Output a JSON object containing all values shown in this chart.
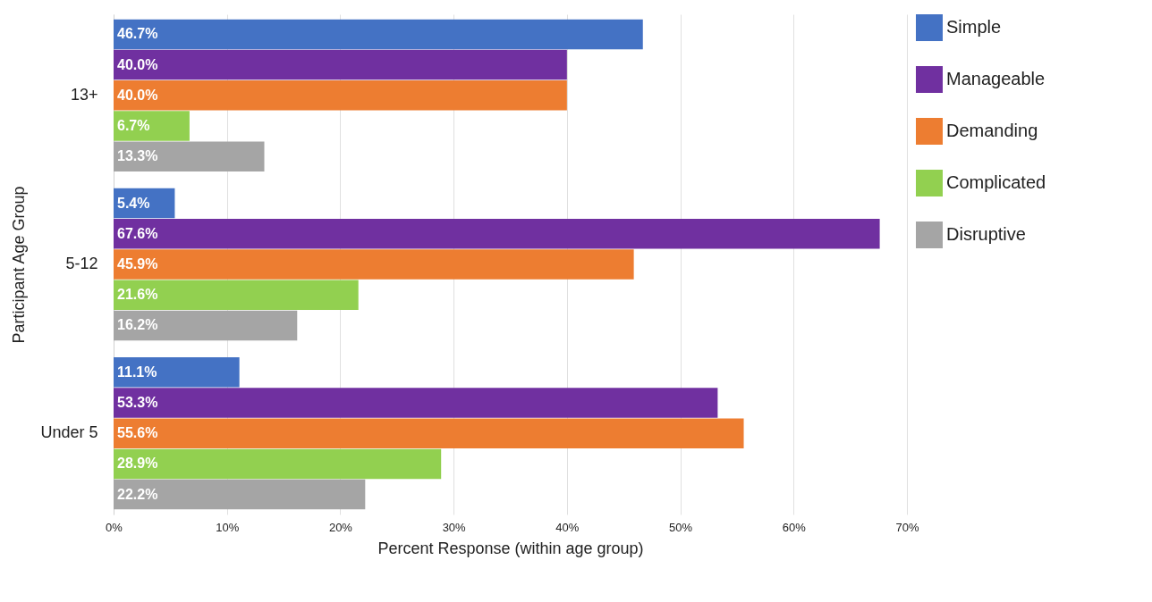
{
  "chart_data": {
    "type": "bar",
    "orientation": "horizontal",
    "xlabel": "Percent Response (within age group)",
    "ylabel": "Participant Age Group",
    "categories": [
      "13+",
      "5-12",
      "Under 5"
    ],
    "series": [
      {
        "name": "Simple",
        "color": "#4472c4",
        "values": [
          46.7,
          5.4,
          11.1
        ],
        "value_labels": [
          "46.7%",
          "5.4%",
          "11.1%"
        ]
      },
      {
        "name": "Manageable",
        "color": "#7030a0",
        "values": [
          40.0,
          67.6,
          53.3
        ],
        "value_labels": [
          "40.0%",
          "67.6%",
          "53.3%"
        ]
      },
      {
        "name": "Demanding",
        "color": "#ed7d31",
        "values": [
          40.0,
          45.9,
          55.6
        ],
        "value_labels": [
          "40.0%",
          "45.9%",
          "55.6%"
        ]
      },
      {
        "name": "Complicated",
        "color": "#92d050",
        "values": [
          6.7,
          21.6,
          28.9
        ],
        "value_labels": [
          "6.7%",
          "21.6%",
          "28.9%"
        ]
      },
      {
        "name": "Disruptive",
        "color": "#a5a5a5",
        "values": [
          13.3,
          16.2,
          22.2
        ],
        "value_labels": [
          "13.3%",
          "16.2%",
          "22.2%"
        ]
      }
    ],
    "xlim": [
      0,
      70
    ],
    "xticks": [
      {
        "value": 0,
        "label": "0%"
      },
      {
        "value": 10,
        "label": "10%"
      },
      {
        "value": 20,
        "label": "20%"
      },
      {
        "value": 30,
        "label": "30%"
      },
      {
        "value": 40,
        "label": "40%"
      },
      {
        "value": 50,
        "label": "50%"
      },
      {
        "value": 60,
        "label": "60%"
      },
      {
        "value": 70,
        "label": "70%"
      }
    ],
    "grid": "x",
    "legend": "right"
  }
}
